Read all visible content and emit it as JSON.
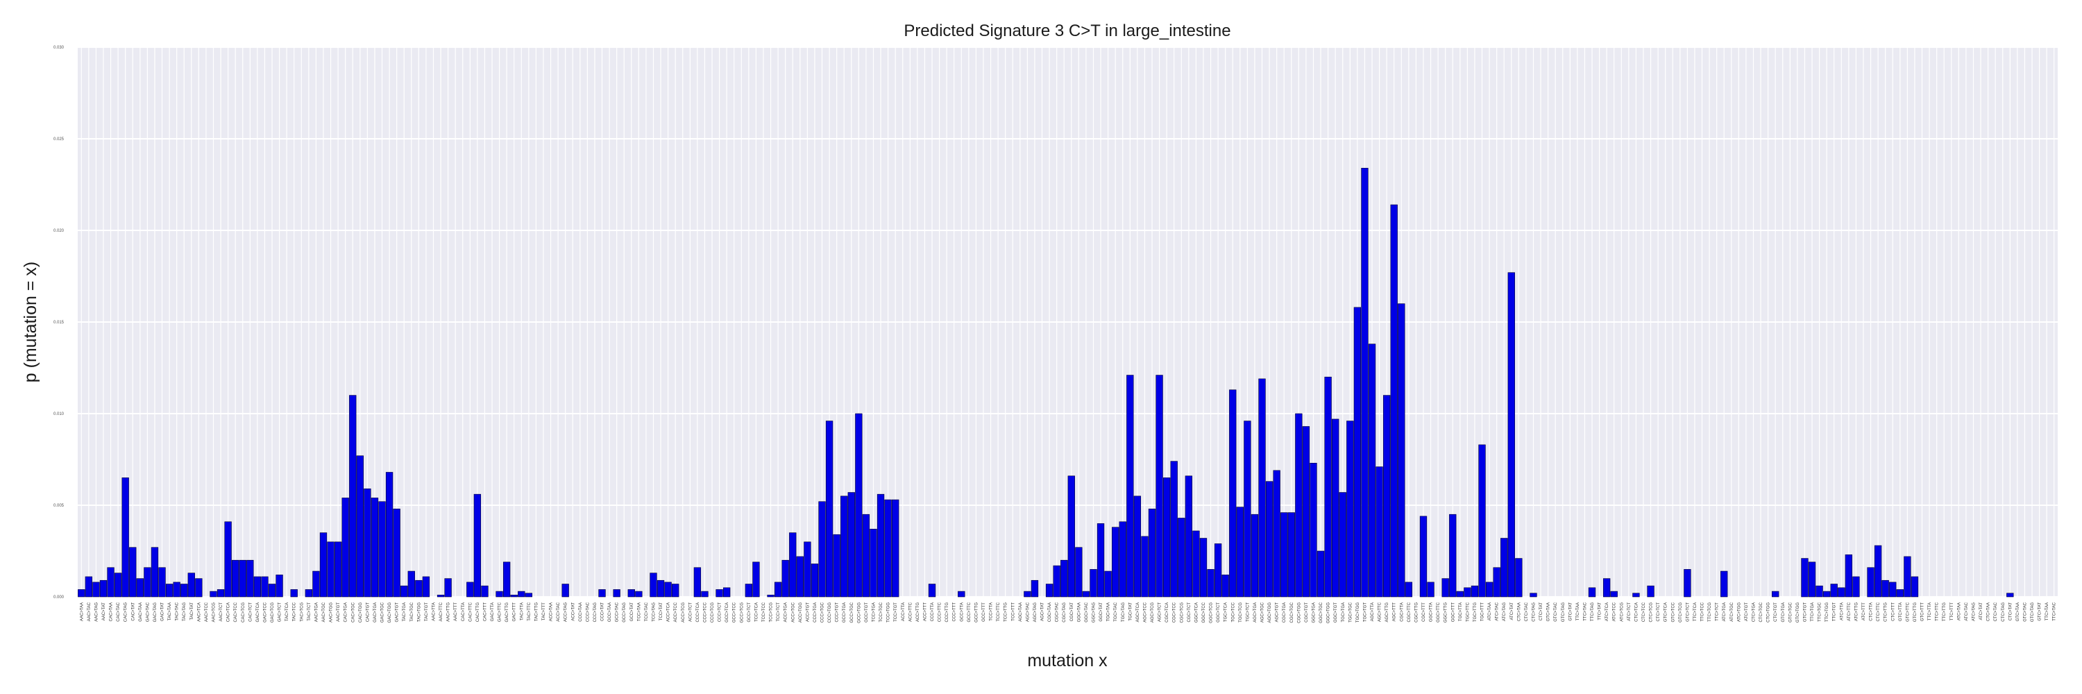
{
  "chart_data": {
    "type": "bar",
    "title": "Predicted Signature 3 C>T in large_intestine",
    "xlabel": "mutation x",
    "ylabel": "p (mutation = x)",
    "ylim": [
      0,
      0.03
    ],
    "yticks": [
      "0.000",
      "0.005",
      "0.010",
      "0.015",
      "0.020",
      "0.025",
      "0.030"
    ],
    "grid": true,
    "bar_color": "#0000e6",
    "background": "#eaeaf2",
    "series": [
      {
        "values": [
          0.0004,
          0.0011,
          0.0008,
          0.0009,
          0.0016,
          0.0013,
          0.0065,
          0.0027,
          0.001,
          0.0016,
          0.0027,
          0.0016,
          0.0007,
          0.0008,
          0.0007,
          0.0013,
          0.001,
          0,
          0.0003,
          0.0004,
          0.0041,
          0.002,
          0.002,
          0.002,
          0.0011,
          0.0011,
          0.0007,
          0.0012,
          0,
          0.0004,
          0,
          0.0004,
          0.0014,
          0.0035,
          0.003,
          0.003,
          0.0054,
          0.011,
          0.0077,
          0.0059,
          0.0054,
          0.0052,
          0.0068,
          0.0048,
          0.0006,
          0.0014,
          0.0009,
          0.0011,
          0,
          0.0001,
          0.001,
          0,
          0,
          0.0008,
          0.0056,
          0.0006,
          0,
          0.0003,
          0.0019,
          0.0001,
          0.0003,
          0.0002,
          0,
          0,
          0,
          0,
          0.0007,
          0,
          0,
          0,
          0,
          0.0004,
          0,
          0.0004,
          0,
          0.0004,
          0.0003,
          0,
          0.0013,
          0.0009,
          0.0008,
          0.0007,
          0,
          0,
          0.0016,
          0.0003,
          0,
          0.0004,
          0.0005,
          0,
          0,
          0.0007,
          0.0019,
          0,
          0.0001,
          0.0008,
          0.002,
          0.0035,
          0.0022,
          0.003,
          0.0018,
          0.0052,
          0.0096,
          0.0034,
          0.0055,
          0.0057,
          0.01,
          0.0045,
          0.0037,
          0.0056,
          0.0053,
          0.0053,
          0,
          0,
          0,
          0,
          0.0007,
          0,
          0,
          0,
          0.0003,
          0,
          0,
          0,
          0,
          0,
          0,
          0,
          0,
          0.0003,
          0.0009,
          0,
          0.0007,
          0.0017,
          0.002,
          0.0066,
          0.0027,
          0.0003,
          0.0015,
          0.004,
          0.0014,
          0.0038,
          0.0041,
          0.0121,
          0.0055,
          0.0033,
          0.0048,
          0.0121,
          0.0065,
          0.0074,
          0.0043,
          0.0066,
          0.0036,
          0.0032,
          0.0015,
          0.0029,
          0.0012,
          0.0113,
          0.0049,
          0.0096,
          0.0045,
          0.0119,
          0.0063,
          0.0069,
          0.0046,
          0.0046,
          0.01,
          0.0093,
          0.0073,
          0.0025,
          0.012,
          0.0097,
          0.0057,
          0.0096,
          0.0158,
          0.0234,
          0.0138,
          0.0071,
          0.011,
          0.0214,
          0.016,
          0.0008,
          0,
          0.0044,
          0.0008,
          0,
          0.001,
          0.0045,
          0.0003,
          0.0005,
          0.0006,
          0.0083,
          0.0008,
          0.0016,
          0.0032,
          0.0177,
          0.0021,
          0,
          0.0002,
          0,
          0,
          0,
          0,
          0,
          0,
          0,
          0.0005,
          0,
          0.001,
          0.0003,
          0,
          0,
          0.0002,
          0,
          0.0006,
          0,
          0,
          0,
          0,
          0.0015,
          0,
          0,
          0,
          0,
          0.0014,
          0,
          0,
          0,
          0,
          0,
          0,
          0.0003,
          0,
          0,
          0,
          0.0021,
          0.0019,
          0.0006,
          0.0003,
          0.0007,
          0.0005,
          0.0023,
          0.0011,
          0,
          0.0016,
          0.0028,
          0.0009,
          0.0008,
          0.0004,
          0.0022,
          0.0011,
          0,
          0,
          0,
          0,
          0,
          0,
          0,
          0,
          0,
          0,
          0,
          0,
          0.0002,
          0,
          0,
          0,
          0,
          0,
          0
        ]
      }
    ],
    "categories": [
      "AAC>TAA",
      "AAC>TAC",
      "AAC>TAG",
      "AAC>TAT",
      "CAC>TAA",
      "CAC>TAC",
      "CAC>TAG",
      "CAC>TAT",
      "GAC>TAA",
      "GAC>TAC",
      "GAC>TAG",
      "GAC>TAT",
      "TAC>TAA",
      "TAC>TAC",
      "TAC>TAG",
      "TAC>TAT",
      "AAC>TCA",
      "AAC>TCC",
      "AAC>TCG",
      "AAC>TCT",
      "CAC>TCA",
      "CAC>TCC",
      "CAC>TCG",
      "CAC>TCT",
      "GAC>TCA",
      "GAC>TCC",
      "GAC>TCG",
      "GAC>TCT",
      "TAC>TCA",
      "TAC>TCC",
      "TAC>TCG",
      "TAC>TCT",
      "AAC>TGA",
      "AAC>TGC",
      "AAC>TGG",
      "AAC>TGT",
      "CAC>TGA",
      "CAC>TGC",
      "CAC>TGG",
      "CAC>TGT",
      "GAC>TGA",
      "GAC>TGC",
      "GAC>TGG",
      "GAC>TGT",
      "TAC>TGA",
      "TAC>TGC",
      "TAC>TGG",
      "TAC>TGT",
      "AAC>TTA",
      "AAC>TTC",
      "AAC>TTG",
      "AAC>TTT",
      "CAC>TTA",
      "CAC>TTC",
      "CAC>TTG",
      "CAC>TTT",
      "GAC>TTA",
      "GAC>TTC",
      "GAC>TTG",
      "GAC>TTT",
      "TAC>TTA",
      "TAC>TTC",
      "TAC>TTG",
      "TAC>TTT",
      "ACC>TAA",
      "ACC>TAC",
      "ACC>TAG",
      "ACC>TAT",
      "CCC>TAA",
      "CCC>TAC",
      "CCC>TAG",
      "CCC>TAT",
      "GCC>TAA",
      "GCC>TAC",
      "GCC>TAG",
      "GCC>TAT",
      "TCC>TAA",
      "TCC>TAC",
      "TCC>TAG",
      "TCC>TAT",
      "ACC>TCA",
      "ACC>TCC",
      "ACC>TCG",
      "ACC>TCT",
      "CCC>TCA",
      "CCC>TCC",
      "CCC>TCG",
      "CCC>TCT",
      "GCC>TCA",
      "GCC>TCC",
      "GCC>TCG",
      "GCC>TCT",
      "TCC>TCA",
      "TCC>TCC",
      "TCC>TCG",
      "TCC>TCT",
      "ACC>TGA",
      "ACC>TGC",
      "ACC>TGG",
      "ACC>TGT",
      "CCC>TGA",
      "CCC>TGC",
      "CCC>TGG",
      "CCC>TGT",
      "GCC>TGA",
      "GCC>TGC",
      "GCC>TGG",
      "GCC>TGT",
      "TCC>TGA",
      "TCC>TGC",
      "TCC>TGG",
      "TCC>TGT",
      "ACC>TTA",
      "ACC>TTC",
      "ACC>TTG",
      "ACC>TTT",
      "CCC>TTA",
      "CCC>TTC",
      "CCC>TTG",
      "CCC>TTT",
      "GCC>TTA",
      "GCC>TTC",
      "GCC>TTG",
      "GCC>TTT",
      "TCC>TTA",
      "TCC>TTC",
      "TCC>TTG",
      "TCC>TTT",
      "AGC>TAA",
      "AGC>TAC",
      "AGC>TAG",
      "AGC>TAT",
      "CGC>TAA",
      "CGC>TAC",
      "CGC>TAG",
      "CGC>TAT",
      "GGC>TAA",
      "GGC>TAC",
      "GGC>TAG",
      "GGC>TAT",
      "TGC>TAA",
      "TGC>TAC",
      "TGC>TAG",
      "TGC>TAT",
      "AGC>TCA",
      "AGC>TCC",
      "AGC>TCG",
      "AGC>TCT",
      "CGC>TCA",
      "CGC>TCC",
      "CGC>TCG",
      "CGC>TCT",
      "GGC>TCA",
      "GGC>TCC",
      "GGC>TCG",
      "GGC>TCT",
      "TGC>TCA",
      "TGC>TCC",
      "TGC>TCG",
      "TGC>TCT",
      "AGC>TGA",
      "AGC>TGC",
      "AGC>TGG",
      "AGC>TGT",
      "CGC>TGA",
      "CGC>TGC",
      "CGC>TGG",
      "CGC>TGT",
      "GGC>TGA",
      "GGC>TGC",
      "GGC>TGG",
      "GGC>TGT",
      "TGC>TGA",
      "TGC>TGC",
      "TGC>TGG",
      "TGC>TGT",
      "AGC>TTA",
      "AGC>TTC",
      "AGC>TTG",
      "AGC>TTT",
      "CGC>TTA",
      "CGC>TTC",
      "CGC>TTG",
      "CGC>TTT",
      "GGC>TTA",
      "GGC>TTC",
      "GGC>TTG",
      "GGC>TTT",
      "TGC>TTA",
      "TGC>TTC",
      "TGC>TTG",
      "TGC>TTT",
      "ATC>TAA",
      "ATC>TAC",
      "ATC>TAG",
      "ATC>TAT",
      "CTC>TAA",
      "CTC>TAC",
      "CTC>TAG",
      "CTC>TAT",
      "GTC>TAA",
      "GTC>TAC",
      "GTC>TAG",
      "GTC>TAT",
      "TTC>TAA",
      "TTC>TAC",
      "TTC>TAG",
      "TTC>TAT",
      "ATC>TCA",
      "ATC>TCC",
      "ATC>TCG",
      "ATC>TCT",
      "CTC>TCA",
      "CTC>TCC",
      "CTC>TCG",
      "CTC>TCT",
      "GTC>TCA",
      "GTC>TCC",
      "GTC>TCG",
      "GTC>TCT",
      "TTC>TCA",
      "TTC>TCC",
      "TTC>TCG",
      "TTC>TCT",
      "ATC>TGA",
      "ATC>TGC",
      "ATC>TGG",
      "ATC>TGT",
      "CTC>TGA",
      "CTC>TGC",
      "CTC>TGG",
      "CTC>TGT",
      "GTC>TGA",
      "GTC>TGC",
      "GTC>TGG",
      "GTC>TGT",
      "TTC>TGA",
      "TTC>TGC",
      "TTC>TGG",
      "TTC>TGT",
      "ATC>TTA",
      "ATC>TTC",
      "ATC>TTG",
      "ATC>TTT",
      "CTC>TTA",
      "CTC>TTC",
      "CTC>TTG",
      "CTC>TTT",
      "GTC>TTA",
      "GTC>TTC",
      "GTC>TTG",
      "GTC>TTT",
      "TTC>TTA",
      "TTC>TTC",
      "TTC>TTG",
      "TTC>TTT",
      "ATC>TAA",
      "ATC>TAC",
      "ATC>TAG",
      "ATC>TAT",
      "CTC>TAA",
      "CTC>TAC",
      "CTC>TAG",
      "CTC>TAT",
      "GTC>TAA",
      "GTC>TAC",
      "GTC>TAG",
      "GTC>TAT",
      "TTC>TAA",
      "TTC>TAC"
    ]
  }
}
